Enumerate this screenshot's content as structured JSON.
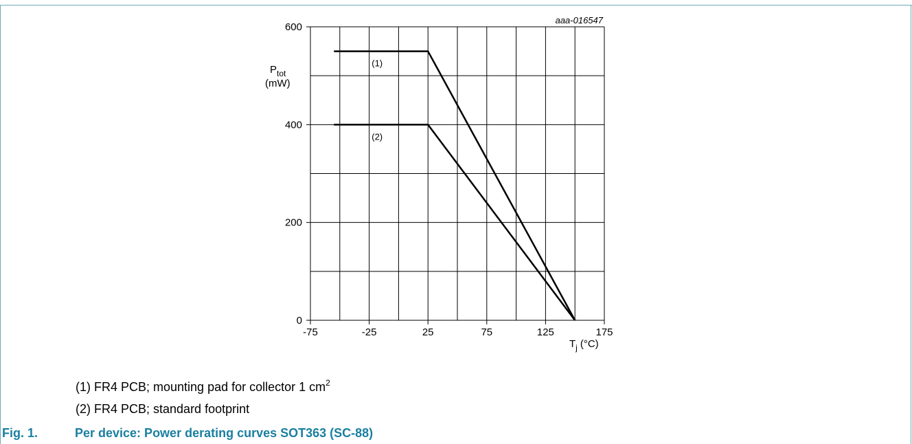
{
  "chart_data": {
    "type": "line",
    "id_label": "aaa-016547",
    "ylabel_main": "P",
    "ylabel_sub": "tot",
    "ylabel_unit": "(mW)",
    "xlabel_main": "T",
    "xlabel_sub": "j",
    "xlabel_unit": "(°C)",
    "xlim": [
      -75,
      175
    ],
    "ylim": [
      0,
      600
    ],
    "x_ticks": [
      -75,
      -25,
      25,
      75,
      125,
      175
    ],
    "y_ticks": [
      0,
      200,
      400,
      600
    ],
    "grid": true,
    "series": [
      {
        "name": "(1)",
        "x": [
          -55,
          25,
          150
        ],
        "y": [
          550,
          550,
          0
        ]
      },
      {
        "name": "(2)",
        "x": [
          -55,
          25,
          150
        ],
        "y": [
          400,
          400,
          0
        ]
      }
    ]
  },
  "notes": {
    "note1_text": "(1) FR4 PCB; mounting pad for collector 1 cm",
    "note1_sup": "2",
    "note2_text": "(2) FR4 PCB; standard footprint"
  },
  "caption": {
    "number": "Fig. 1.",
    "title": "Per device: Power derating curves SOT363 (SC-88)"
  }
}
